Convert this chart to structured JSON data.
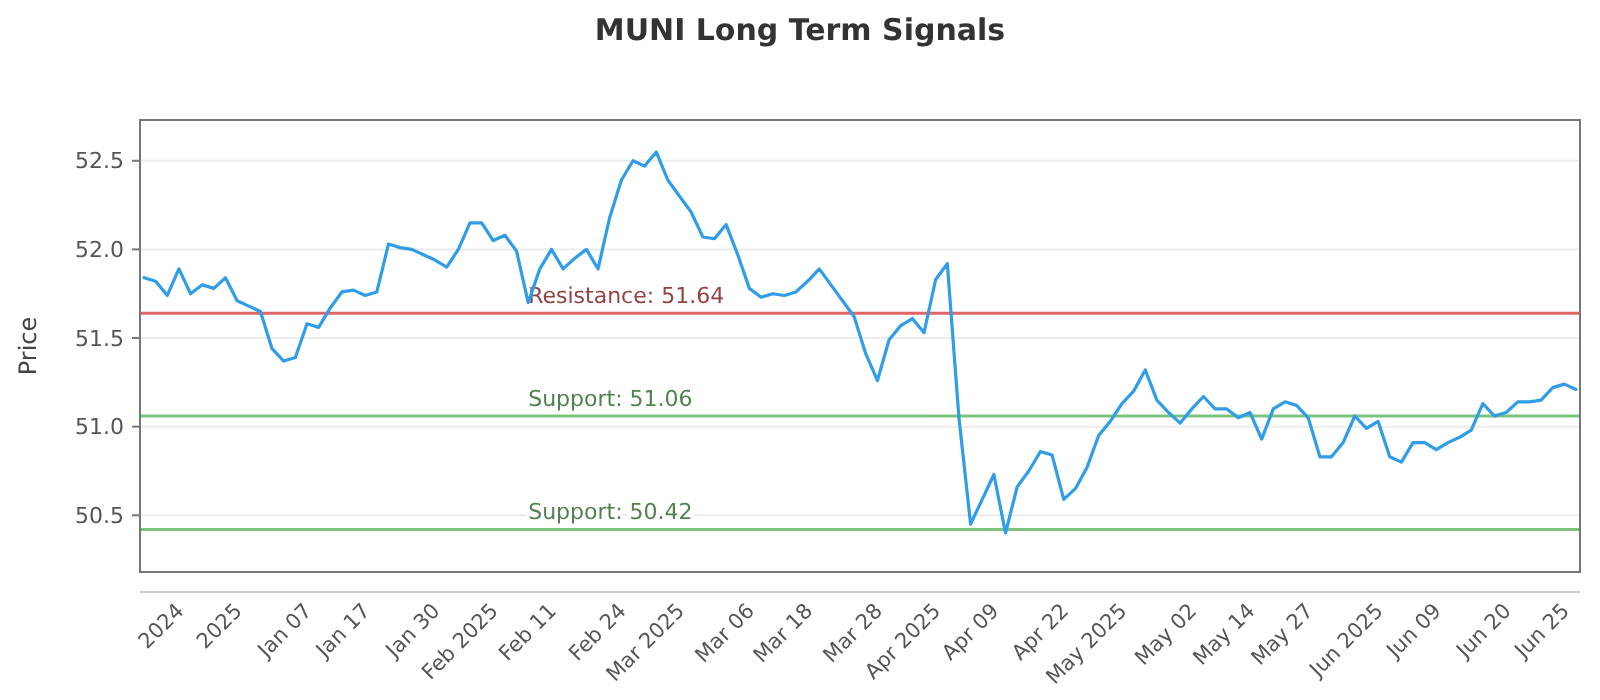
{
  "chart_data": {
    "type": "line",
    "title": "MUNI Long Term Signals",
    "ylabel": "Price",
    "categories": [
      null,
      null,
      null,
      "2024",
      null,
      null,
      null,
      null,
      "2025",
      null,
      null,
      null,
      null,
      null,
      "Jan 07",
      null,
      null,
      null,
      null,
      "Jan 17",
      null,
      null,
      null,
      null,
      null,
      "Jan 30",
      null,
      null,
      null,
      null,
      "Feb 2025",
      null,
      null,
      null,
      null,
      "Feb 11",
      null,
      null,
      null,
      null,
      null,
      "Feb 24",
      null,
      null,
      null,
      null,
      "Mar 2025",
      null,
      null,
      null,
      null,
      null,
      "Mar 06",
      null,
      null,
      null,
      null,
      "Mar 18",
      null,
      null,
      null,
      null,
      null,
      "Mar 28",
      null,
      null,
      null,
      null,
      "Apr 2025",
      null,
      null,
      null,
      null,
      "Apr 09",
      null,
      null,
      null,
      null,
      null,
      "Apr 22",
      null,
      null,
      null,
      null,
      "May 2025",
      null,
      null,
      null,
      null,
      null,
      "May 02",
      null,
      null,
      null,
      null,
      "May 14",
      null,
      null,
      null,
      null,
      "May 27",
      null,
      null,
      null,
      null,
      null,
      "Jun 2025",
      null,
      null,
      null,
      null,
      "Jun 09",
      null,
      null,
      null,
      null,
      null,
      "Jun 20",
      null,
      null,
      null,
      null,
      "Jun 25",
      null
    ],
    "series": [
      {
        "color": "#2f9de8",
        "values": [
          51.84,
          51.82,
          51.74,
          51.89,
          51.75,
          51.8,
          51.78,
          51.84,
          51.71,
          51.68,
          51.65,
          51.44,
          51.37,
          51.39,
          51.58,
          51.56,
          51.67,
          51.76,
          51.77,
          51.74,
          51.76,
          52.03,
          52.01,
          52.0,
          51.97,
          51.94,
          51.9,
          52.0,
          52.15,
          52.15,
          52.05,
          52.08,
          51.99,
          51.7,
          51.89,
          52.0,
          51.89,
          51.95,
          52.0,
          51.89,
          52.18,
          52.39,
          52.5,
          52.47,
          52.55,
          52.39,
          52.3,
          52.21,
          52.07,
          52.06,
          52.14,
          51.97,
          51.78,
          51.73,
          51.75,
          51.74,
          51.76,
          51.82,
          51.89,
          51.8,
          51.71,
          51.62,
          51.41,
          51.26,
          51.49,
          51.57,
          51.61,
          51.53,
          51.83,
          51.92,
          51.05,
          50.45,
          50.59,
          50.73,
          50.4,
          50.66,
          50.75,
          50.86,
          50.84,
          50.59,
          50.65,
          50.77,
          50.95,
          51.03,
          51.13,
          51.2,
          51.32,
          51.15,
          51.08,
          51.02,
          51.1,
          51.17,
          51.1,
          51.1,
          51.05,
          51.08,
          50.93,
          51.1,
          51.14,
          51.12,
          51.05,
          50.83,
          50.83,
          50.91,
          51.06,
          50.99,
          51.03,
          50.83,
          50.8,
          50.91,
          50.91,
          50.87,
          50.91,
          50.94,
          50.98,
          51.13,
          51.06,
          51.08,
          51.14,
          51.14,
          51.15,
          51.22,
          51.24,
          51.21
        ]
      }
    ],
    "ylim": [
      50.18,
      52.73
    ],
    "yticks": [
      50.5,
      {
        "value": 51,
        "label": "51.0"
      },
      51.5,
      {
        "value": 52,
        "label": "52.0"
      },
      52.5
    ],
    "grid": "y",
    "marker": "none",
    "line_style": "solid",
    "ref_lines": [
      {
        "axis": "y",
        "value": 51.64,
        "label": "Resistance: 51.64",
        "color": "#e06666"
      },
      {
        "axis": "y",
        "value": 51.06,
        "label": "Support: 51.06",
        "color": "#7cc47c"
      },
      {
        "axis": "y",
        "value": 50.42,
        "label": "Support: 50.42",
        "color": "#7cc47c"
      }
    ]
  }
}
